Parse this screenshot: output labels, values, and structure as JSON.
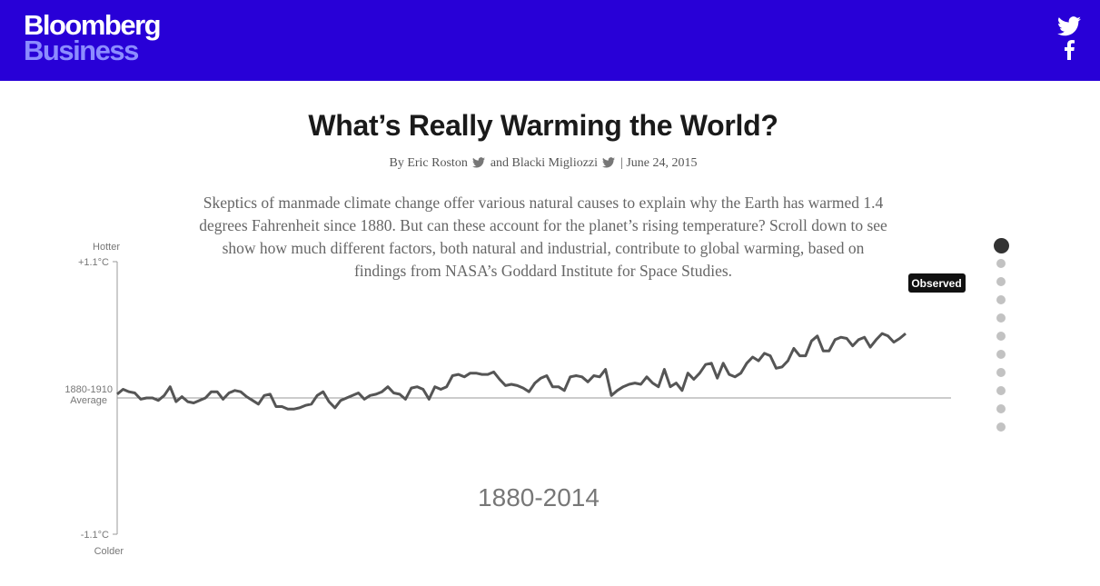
{
  "header": {
    "logo_line1": "Bloomberg",
    "logo_line2": "Business",
    "brand_color": "#2800d7",
    "logo_accent": "#8c8cff",
    "social": [
      "twitter-icon",
      "facebook-icon"
    ]
  },
  "article": {
    "title": "What’s Really Warming the World?",
    "byline_by": "By Eric Roston",
    "byline_and": "and Blacki Migliozzi",
    "byline_date": "| June 24, 2015",
    "dek": "Skeptics of manmade climate change offer various natural causes to explain why the Earth has warmed 1.4 degrees Fahrenheit since 1880. But can these account for the planet’s rising temperature? Scroll down to see show how much different factors, both natural and industrial, contribute to global warming, based on findings from NASA’s Goddard Institute for Space Studies."
  },
  "chart_data": {
    "type": "line",
    "title": "",
    "range_label": "1880-2014",
    "axis": {
      "top_word": "Hotter",
      "top_value": "+1.1°C",
      "baseline_line1": "1880-1910",
      "baseline_line2": "Average",
      "bottom_value": "-1.1°C",
      "bottom_word": "Colder"
    },
    "ylim": [
      -1.1,
      1.1
    ],
    "baseline": 0,
    "xlim": [
      1880,
      2014
    ],
    "series": [
      {
        "name": "Observed",
        "color": "#555555",
        "x": [
          1880,
          1881,
          1882,
          1883,
          1884,
          1885,
          1886,
          1887,
          1888,
          1889,
          1890,
          1891,
          1892,
          1893,
          1894,
          1895,
          1896,
          1897,
          1898,
          1899,
          1900,
          1901,
          1902,
          1903,
          1904,
          1905,
          1906,
          1907,
          1908,
          1909,
          1910,
          1911,
          1912,
          1913,
          1914,
          1915,
          1916,
          1917,
          1918,
          1919,
          1920,
          1921,
          1922,
          1923,
          1924,
          1925,
          1926,
          1927,
          1928,
          1929,
          1930,
          1931,
          1932,
          1933,
          1934,
          1935,
          1936,
          1937,
          1938,
          1939,
          1940,
          1941,
          1942,
          1943,
          1944,
          1945,
          1946,
          1947,
          1948,
          1949,
          1950,
          1951,
          1952,
          1953,
          1954,
          1955,
          1956,
          1957,
          1958,
          1959,
          1960,
          1961,
          1962,
          1963,
          1964,
          1965,
          1966,
          1967,
          1968,
          1969,
          1970,
          1971,
          1972,
          1973,
          1974,
          1975,
          1976,
          1977,
          1978,
          1979,
          1980,
          1981,
          1982,
          1983,
          1984,
          1985,
          1986,
          1987,
          1988,
          1989,
          1990,
          1991,
          1992,
          1993,
          1994,
          1995,
          1996,
          1997,
          1998,
          1999,
          2000,
          2001,
          2002,
          2003,
          2004,
          2005,
          2006,
          2007,
          2008,
          2009,
          2010,
          2011,
          2012,
          2013,
          2014
        ],
        "y": [
          0.03,
          0.07,
          0.05,
          0.04,
          -0.01,
          0.0,
          0.0,
          -0.02,
          0.02,
          0.09,
          -0.03,
          0.01,
          -0.03,
          -0.04,
          -0.02,
          0.0,
          0.05,
          0.05,
          -0.01,
          0.04,
          0.06,
          0.05,
          0.01,
          -0.02,
          -0.05,
          0.02,
          0.03,
          -0.07,
          -0.07,
          -0.09,
          -0.09,
          -0.08,
          -0.06,
          -0.05,
          0.02,
          0.05,
          -0.03,
          -0.08,
          -0.02,
          0.0,
          0.02,
          0.04,
          -0.01,
          0.02,
          0.03,
          0.05,
          0.09,
          0.04,
          0.03,
          -0.01,
          0.08,
          0.09,
          0.07,
          -0.01,
          0.09,
          0.07,
          0.09,
          0.18,
          0.19,
          0.17,
          0.2,
          0.2,
          0.19,
          0.19,
          0.21,
          0.15,
          0.1,
          0.11,
          0.1,
          0.08,
          0.05,
          0.12,
          0.16,
          0.18,
          0.09,
          0.09,
          0.06,
          0.17,
          0.18,
          0.17,
          0.13,
          0.18,
          0.17,
          0.23,
          0.02,
          0.06,
          0.09,
          0.11,
          0.12,
          0.11,
          0.17,
          0.12,
          0.09,
          0.23,
          0.09,
          0.12,
          0.06,
          0.2,
          0.15,
          0.2,
          0.27,
          0.28,
          0.16,
          0.28,
          0.19,
          0.17,
          0.2,
          0.28,
          0.33,
          0.3,
          0.36,
          0.34,
          0.24,
          0.25,
          0.3,
          0.4,
          0.34,
          0.34,
          0.46,
          0.5,
          0.38,
          0.38,
          0.47,
          0.49,
          0.48,
          0.42,
          0.47,
          0.49,
          0.41,
          0.47,
          0.52,
          0.5,
          0.45,
          0.48,
          0.52
        ]
      }
    ]
  },
  "nav": {
    "dots": [
      "active",
      "",
      "",
      "",
      "",
      "",
      "",
      "",
      "",
      "",
      ""
    ]
  }
}
